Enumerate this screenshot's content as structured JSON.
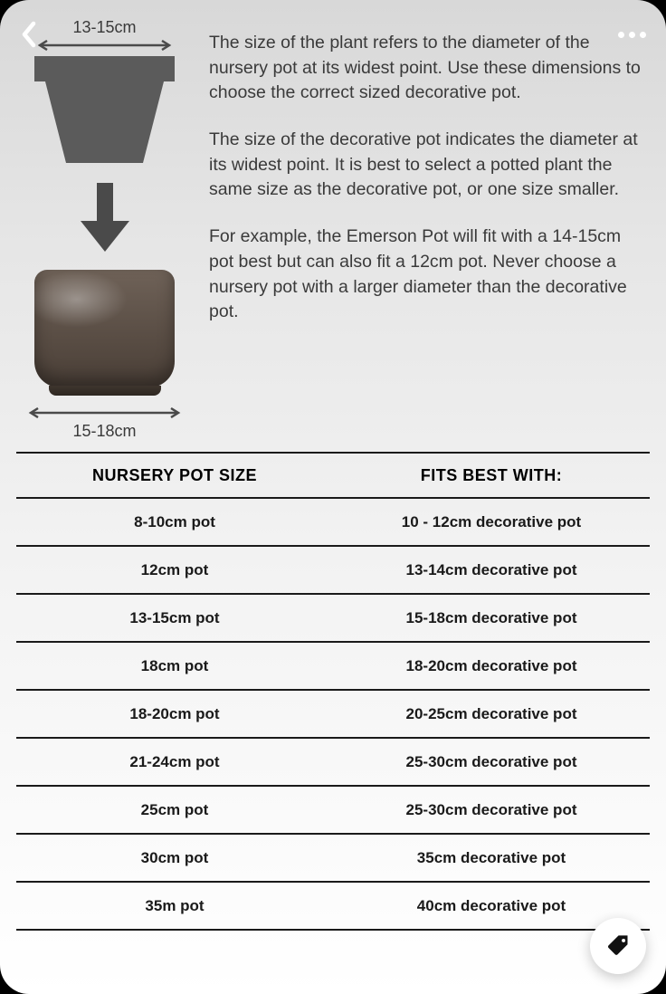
{
  "nav": {
    "back_icon_color": "#ffffff",
    "more_icon_color": "#ffffff"
  },
  "diagram": {
    "nursery_dim_label": "13-15cm",
    "deco_dim_label": "15-18cm",
    "nursery_pot_color": "#5b5b5b",
    "arrow_color": "#4a4a4a",
    "deco_pot_color": "#5a4e45"
  },
  "copy": {
    "p1": "The size of the plant refers to the diameter of the nursery pot at its widest point. Use these dimensions to choose the correct sized decorative pot.",
    "p2": "The size of the decorative pot indicates the diameter at its widest point. It is best to select a potted plant the same size as the decorative pot, or one size smaller.",
    "p3": "For example, the Emerson Pot will fit with a 14-15cm pot best but can also fit a 12cm pot. Never choose a nursery pot with a larger diameter than the decorative pot."
  },
  "table": {
    "columns": [
      "NURSERY POT SIZE",
      "FITS BEST WITH:"
    ],
    "rows": [
      [
        "8-10cm pot",
        "10 - 12cm decorative pot"
      ],
      [
        "12cm pot",
        "13-14cm decorative pot"
      ],
      [
        "13-15cm pot",
        "15-18cm decorative pot"
      ],
      [
        "18cm pot",
        "18-20cm decorative pot"
      ],
      [
        "18-20cm pot",
        "20-25cm decorative pot"
      ],
      [
        "21-24cm pot",
        "25-30cm decorative pot"
      ],
      [
        "25cm pot",
        "25-30cm decorative pot"
      ],
      [
        "30cm pot",
        "35cm decorative pot"
      ],
      [
        "35m pot",
        "40cm decorative pot"
      ]
    ],
    "border_color": "#1a1a1a",
    "header_fontsize": 18,
    "cell_fontsize": 17
  },
  "fab": {
    "bg": "#ffffff",
    "icon_color": "#111111"
  }
}
